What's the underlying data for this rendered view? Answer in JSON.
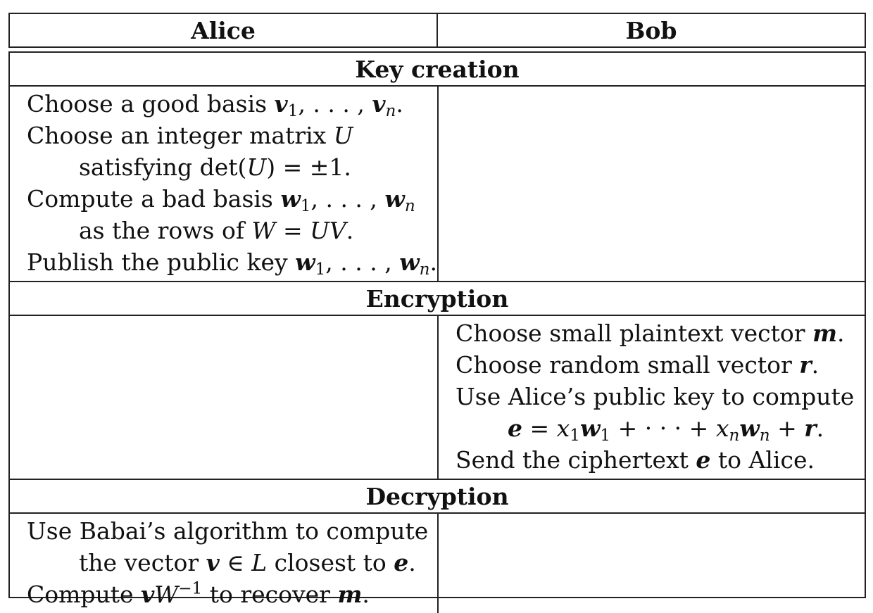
{
  "header": {
    "alice": "Alice",
    "bob": "Bob"
  },
  "sections": {
    "key_creation": {
      "title": "Key creation",
      "alice": {
        "l1a": "Choose a good basis ",
        "l2a": "Choose an integer matrix ",
        "l3a": "satisfying det(",
        "l3b": ") = ±1.",
        "l4a": "Compute a bad basis ",
        "l5a": "as the rows of ",
        "l6a": "Publish the public key "
      }
    },
    "encryption": {
      "title": "Encryption",
      "bob": {
        "l1a": "Choose small plaintext vector ",
        "l2a": "Choose random small vector ",
        "l3a": "Use Alice’s public key to compute",
        "l5a": "Send the ciphertext ",
        "l5b": " to Alice."
      }
    },
    "decryption": {
      "title": "Decryption",
      "alice": {
        "l1a": "Use Babai’s algorithm to compute",
        "l2a": "the vector ",
        "l2b": " ∈ ",
        "l2c": " closest to ",
        "l3a": "Compute ",
        "l3b": " to recover "
      }
    }
  }
}
